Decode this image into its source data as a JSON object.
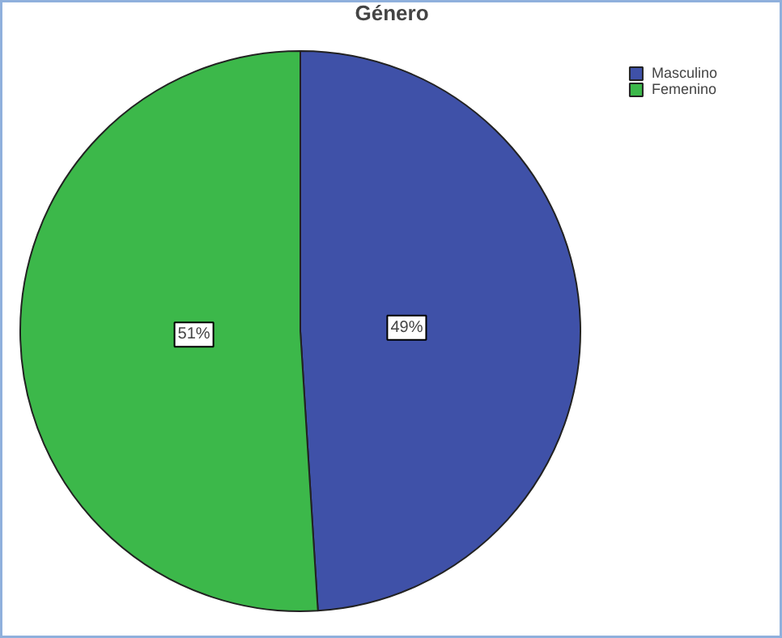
{
  "chart_data": {
    "type": "pie",
    "title": "Género",
    "categories": [
      "Masculino",
      "Femenino"
    ],
    "values": [
      49,
      51
    ],
    "colors": [
      "#3f51a8",
      "#3cb84a"
    ],
    "value_labels": [
      "49%",
      "51%"
    ],
    "legend": "top right"
  }
}
